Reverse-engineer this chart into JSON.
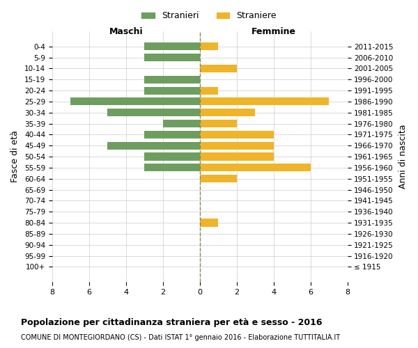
{
  "age_groups": [
    "100+",
    "95-99",
    "90-94",
    "85-89",
    "80-84",
    "75-79",
    "70-74",
    "65-69",
    "60-64",
    "55-59",
    "50-54",
    "45-49",
    "40-44",
    "35-39",
    "30-34",
    "25-29",
    "20-24",
    "15-19",
    "10-14",
    "5-9",
    "0-4"
  ],
  "birth_years": [
    "≤ 1915",
    "1916-1920",
    "1921-1925",
    "1926-1930",
    "1931-1935",
    "1936-1940",
    "1941-1945",
    "1946-1950",
    "1951-1955",
    "1956-1960",
    "1961-1965",
    "1966-1970",
    "1971-1975",
    "1976-1980",
    "1981-1985",
    "1986-1990",
    "1991-1995",
    "1996-2000",
    "2001-2005",
    "2006-2010",
    "2011-2015"
  ],
  "maschi": [
    0,
    0,
    0,
    0,
    0,
    0,
    0,
    0,
    0,
    3,
    3,
    5,
    3,
    2,
    5,
    7,
    3,
    3,
    0,
    3,
    3
  ],
  "femmine": [
    0,
    0,
    0,
    0,
    1,
    0,
    0,
    0,
    2,
    6,
    4,
    4,
    4,
    2,
    3,
    7,
    1,
    0,
    2,
    0,
    1
  ],
  "male_color": "#6e9e5f",
  "female_color": "#f0b429",
  "bar_height": 0.7,
  "xlim": 8,
  "title": "Popolazione per cittadinanza straniera per età e sesso - 2016",
  "subtitle": "COMUNE DI MONTEGIORDANO (CS) - Dati ISTAT 1° gennaio 2016 - Elaborazione TUTTITALIA.IT",
  "ylabel_left": "Fasce di età",
  "ylabel_right": "Anni di nascita",
  "xlabel_left": "Maschi",
  "xlabel_right": "Femmine",
  "legend_male": "Stranieri",
  "legend_female": "Straniere",
  "background_color": "#ffffff",
  "grid_color": "#cccccc",
  "center_line_color": "#888855"
}
